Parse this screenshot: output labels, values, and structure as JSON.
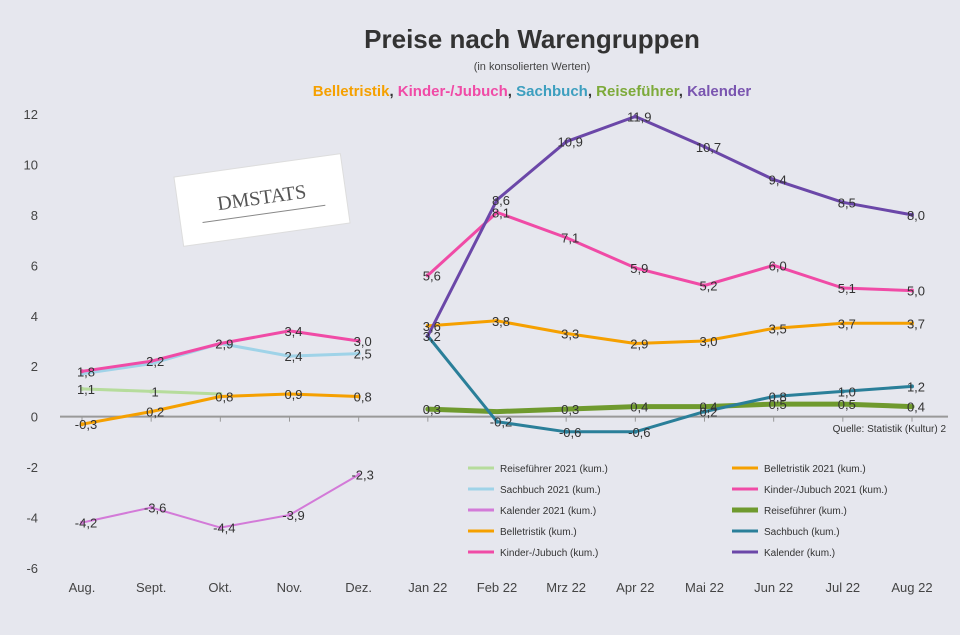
{
  "header": {
    "title": "Preise nach Warengruppen",
    "subtitle": "(in konsolierten Werten)",
    "categories": [
      {
        "label": "Belletristik",
        "color": "#f5a000",
        "sep": ", "
      },
      {
        "label": "Kinder-/Jubuch",
        "color": "#f04ba6",
        "sep": ", "
      },
      {
        "label": "Sachbuch",
        "color": "#3d9fbf",
        "sep": ", "
      },
      {
        "label": "Reiseführer",
        "color": "#7daa3a",
        "sep": ", "
      },
      {
        "label": "Kalender",
        "color": "#7a55b0",
        "sep": ""
      }
    ]
  },
  "logo": {
    "text": "DMSTATS"
  },
  "source": "Quelle: Statistik (Kultur) 2",
  "chart_data": {
    "type": "line",
    "categories": [
      "Aug.",
      "Sept.",
      "Okt.",
      "Nov.",
      "Dez.",
      "Jan 22",
      "Feb 22",
      "Mrz 22",
      "Apr 22",
      "Mai 22",
      "Jun 22",
      "Jul 22",
      "Aug 22"
    ],
    "yticks": [
      "12",
      "10",
      "8",
      "6",
      "4",
      "2",
      "0",
      "-2",
      "-4",
      "-6"
    ],
    "ylim": [
      -6,
      12
    ],
    "series": [
      {
        "name": "Reiseführer 2021 (kum.)",
        "color": "#b6dc9c",
        "width": 3,
        "values": [
          1.1,
          1,
          0.9,
          null,
          null,
          null,
          null,
          null,
          null,
          null,
          null,
          null,
          null
        ],
        "labels": [
          "1,1",
          "1",
          "",
          "",
          "",
          "",
          "",
          "",
          "",
          "",
          "",
          "",
          ""
        ]
      },
      {
        "name": "Belletristik 2021 (kum.)",
        "color": "#f5a000",
        "width": 3,
        "values": [
          -0.3,
          0.2,
          0.8,
          0.9,
          0.8,
          null,
          null,
          null,
          null,
          null,
          null,
          null,
          null
        ],
        "labels": [
          "-0,3",
          "0,2",
          "0,8",
          "0,9",
          "0,8",
          "",
          "",
          "",
          "",
          "",
          "",
          "",
          ""
        ]
      },
      {
        "name": "Sachbuch 2021 (kum.)",
        "color": "#9fd3e8",
        "width": 3,
        "values": [
          1.7,
          2.1,
          2.9,
          2.4,
          2.5,
          null,
          null,
          null,
          null,
          null,
          null,
          null,
          null
        ],
        "labels": [
          "",
          "",
          "",
          "2,4",
          "2,5",
          "",
          "",
          "",
          "",
          "",
          "",
          "",
          ""
        ]
      },
      {
        "name": "Kinder-/Jubuch 2021 (kum.)",
        "color": "#f04ba6",
        "width": 3,
        "values": [
          1.8,
          2.2,
          2.9,
          3.4,
          3.0,
          null,
          null,
          null,
          null,
          null,
          null,
          null,
          null
        ],
        "labels": [
          "1,8",
          "2,2",
          "2,9",
          "3,4",
          "3,0",
          "",
          "",
          "",
          "",
          "",
          "",
          "",
          ""
        ]
      },
      {
        "name": "Kalender 2021 (kum.)",
        "color": "#d37ad8",
        "width": 2,
        "values": [
          -4.2,
          -3.6,
          -4.4,
          -3.9,
          -2.3,
          null,
          null,
          null,
          null,
          null,
          null,
          null,
          null
        ],
        "labels": [
          "-4,2",
          "-3,6",
          "-4,4",
          "-3,9",
          "-2,3",
          "",
          "",
          "",
          "",
          "",
          "",
          "",
          ""
        ]
      },
      {
        "name": "Reiseführer (kum.)",
        "color": "#6f9a2e",
        "width": 5,
        "values": [
          null,
          null,
          null,
          null,
          null,
          0.3,
          0.2,
          0.3,
          0.4,
          0.4,
          0.5,
          0.5,
          0.4
        ],
        "labels": [
          "",
          "",
          "",
          "",
          "",
          "0,3",
          "",
          "0,3",
          "0,4",
          "0,4",
          "0,5",
          "0,5",
          "0,4"
        ]
      },
      {
        "name": "Belletristik (kum.)",
        "color": "#f5a000",
        "width": 3,
        "values": [
          null,
          null,
          null,
          null,
          null,
          3.6,
          3.8,
          3.3,
          2.9,
          3.0,
          3.5,
          3.7,
          3.7
        ],
        "labels": [
          "",
          "",
          "",
          "",
          "",
          "3,6",
          "3,8",
          "3,3",
          "2,9",
          "3,0",
          "3,5",
          "3,7",
          "3,7"
        ]
      },
      {
        "name": "Sachbuch (kum.)",
        "color": "#2a7f99",
        "width": 3,
        "values": [
          null,
          null,
          null,
          null,
          null,
          3.2,
          -0.2,
          -0.6,
          -0.6,
          0.2,
          0.8,
          1.0,
          1.2
        ],
        "labels": [
          "",
          "",
          "",
          "",
          "",
          "",
          "-0,2",
          "-0,6",
          "-0,6",
          "0,2",
          "0,8",
          "1,0",
          "1,2"
        ]
      },
      {
        "name": "Kinder-/Jubuch (kum.)",
        "color": "#f04ba6",
        "width": 3,
        "values": [
          null,
          null,
          null,
          null,
          null,
          5.6,
          8.1,
          7.1,
          5.9,
          5.2,
          6.0,
          5.1,
          5.0
        ],
        "labels": [
          "",
          "",
          "",
          "",
          "",
          "5,6",
          "8,1",
          "7,1",
          "5,9",
          "5,2",
          "6,0",
          "5,1",
          "5,0"
        ]
      },
      {
        "name": "Kalender (kum.)",
        "color": "#6b47a8",
        "width": 3,
        "values": [
          null,
          null,
          null,
          null,
          null,
          3.2,
          8.6,
          10.9,
          11.9,
          10.7,
          9.4,
          8.5,
          8.0
        ],
        "labels": [
          "",
          "",
          "",
          "",
          "",
          "3,2",
          "8,6",
          "10,9",
          "11,9",
          "10,7",
          "9,4",
          "8,5",
          "8,0"
        ]
      }
    ]
  }
}
